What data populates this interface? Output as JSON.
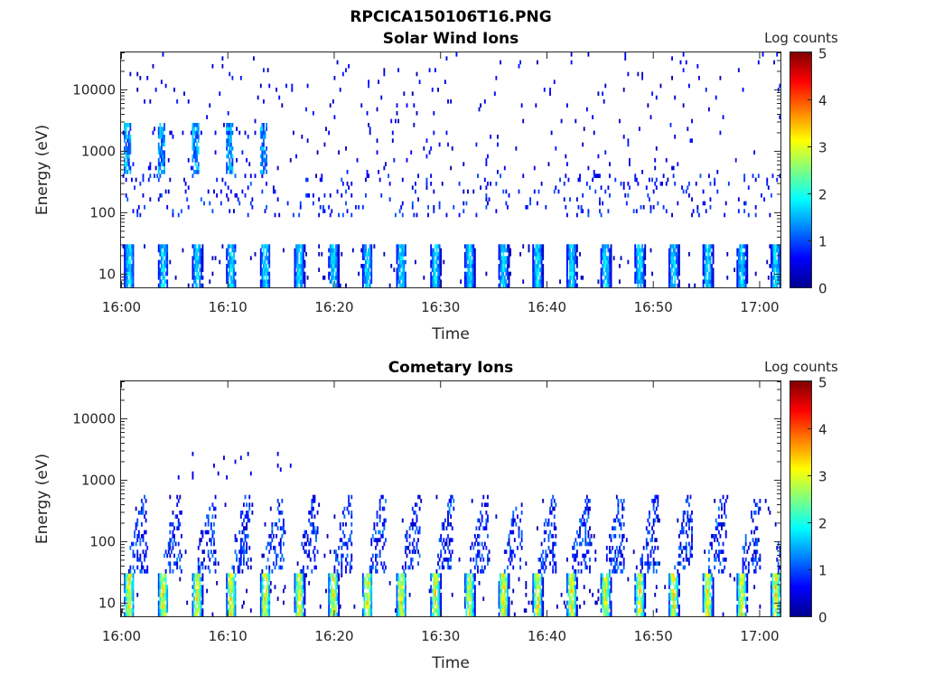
{
  "figure": {
    "title": "RPCICA150106T16.PNG"
  },
  "chart_data": [
    {
      "type": "heatmap",
      "title": "Solar Wind Ions",
      "xlabel": "Time",
      "ylabel": "Energy (eV)",
      "x_ticks": [
        "16:00",
        "16:10",
        "16:20",
        "16:30",
        "16:40",
        "16:50",
        "17:00"
      ],
      "x_range_minutes": [
        0,
        62
      ],
      "y_scale": "log",
      "y_ticks": [
        "10",
        "100",
        "1000",
        "10000"
      ],
      "y_tick_values": [
        10,
        100,
        1000,
        10000
      ],
      "ylim": [
        6,
        40000
      ],
      "colorbar": {
        "label": "Log counts",
        "ticks": [
          "0",
          "1",
          "2",
          "3",
          "4",
          "5"
        ],
        "range": [
          0,
          5
        ],
        "colormap": "jet"
      },
      "features": [
        {
          "energy_range": [
            6,
            30
          ],
          "pattern": "periodic bursts every ~3.2 min",
          "log_counts": [
            0.5,
            2.0
          ]
        },
        {
          "energy_range": [
            400,
            3000
          ],
          "time_range_min": [
            0,
            14
          ],
          "log_counts": [
            0.8,
            2.0
          ]
        },
        {
          "energy_range": [
            80,
            400
          ],
          "pattern": "sparse",
          "log_counts": [
            0.3,
            1.2
          ]
        },
        {
          "energy_range": [
            1000,
            40000
          ],
          "pattern": "scattered noise",
          "log_counts": [
            0.2,
            0.8
          ]
        }
      ]
    },
    {
      "type": "heatmap",
      "title": "Cometary Ions",
      "xlabel": "Time",
      "ylabel": "Energy (eV)",
      "x_ticks": [
        "16:00",
        "16:10",
        "16:20",
        "16:30",
        "16:40",
        "16:50",
        "17:00"
      ],
      "x_range_minutes": [
        0,
        62
      ],
      "y_scale": "log",
      "y_ticks": [
        "10",
        "100",
        "1000",
        "10000"
      ],
      "y_tick_values": [
        10,
        100,
        1000,
        10000
      ],
      "ylim": [
        6,
        40000
      ],
      "colorbar": {
        "label": "Log counts",
        "ticks": [
          "0",
          "1",
          "2",
          "3",
          "4",
          "5"
        ],
        "range": [
          0,
          5
        ],
        "colormap": "jet"
      },
      "features": [
        {
          "energy_range": [
            6,
            30
          ],
          "pattern": "periodic bursts every ~3.2 min",
          "log_counts": [
            0.5,
            3.0
          ]
        },
        {
          "energy_range": [
            30,
            600
          ],
          "pattern": "dispersed streaks after each burst",
          "log_counts": [
            0.3,
            1.3
          ]
        },
        {
          "energy_range": [
            1000,
            3000
          ],
          "pattern": "rare isolated pixels",
          "log_counts": [
            0.3,
            1.0
          ]
        }
      ]
    }
  ]
}
